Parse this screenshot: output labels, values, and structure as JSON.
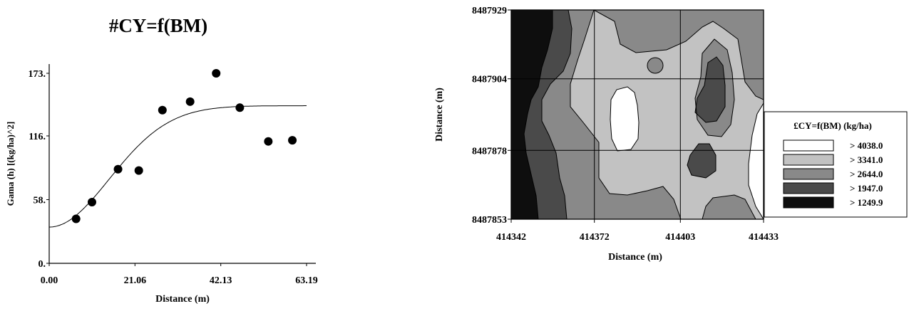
{
  "chart_data": [
    {
      "type": "scatter",
      "title": "#CY=f(BM)",
      "xlabel": "Distance (m)",
      "ylabel": "Gama (h) [(kg/ha)^2]",
      "xlim": [
        0,
        63.19
      ],
      "ylim": [
        0,
        173
      ],
      "x_ticks": [
        "0.00",
        "21.06",
        "42.13",
        "63.19"
      ],
      "y_ticks": [
        "0.",
        "58.",
        "116.",
        "173."
      ],
      "grid": false,
      "series": [
        {
          "kind": "points",
          "x": [
            6.6,
            10.5,
            16.9,
            22.0,
            27.8,
            34.6,
            41.0,
            46.8,
            53.8,
            59.7
          ],
          "y": [
            40.5,
            55.7,
            85.7,
            84.5,
            139.5,
            147.2,
            173.0,
            141.7,
            111.0,
            112.0
          ]
        },
        {
          "kind": "fitted-line",
          "model": "gaussian",
          "nugget": 33,
          "sill": 143.5,
          "range": 36
        }
      ]
    },
    {
      "type": "heatmap",
      "subtype": "contour-map",
      "title": "",
      "xlabel": "Distance (m)",
      "ylabel": "Distance (m)",
      "xlim": [
        414342,
        414433
      ],
      "ylim": [
        8487853,
        8487929
      ],
      "x_ticks": [
        "414342",
        "414372",
        "414403",
        "414433"
      ],
      "y_ticks": [
        "8487853",
        "8487878",
        "8487904",
        "8487929"
      ],
      "grid": true,
      "legend": {
        "title": "£CY=f(BM) (kg/ha)",
        "placement": "right",
        "entries": [
          {
            "label": "> 4038.0",
            "threshold": 4038.0,
            "color": "#ffffff"
          },
          {
            "label": "> 3341.0",
            "threshold": 3341.0,
            "color": "#c2c2c2"
          },
          {
            "label": "> 2644.0",
            "threshold": 2644.0,
            "color": "#898989"
          },
          {
            "label": "> 1947.0",
            "threshold": 1947.0,
            "color": "#4a4a4a"
          },
          {
            "label": "> 1249.9",
            "threshold": 1249.9,
            "color": "#0e0e0e"
          }
        ]
      }
    }
  ]
}
